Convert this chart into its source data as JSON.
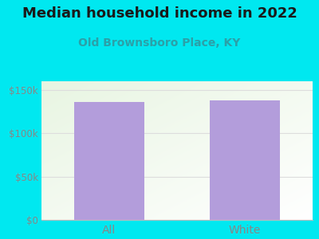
{
  "title": "Median household income in 2022",
  "subtitle": "Old Brownsboro Place, KY",
  "categories": [
    "All",
    "White"
  ],
  "values": [
    136000,
    138000
  ],
  "bar_color": "#b39ddb",
  "background_color": "#00e8f0",
  "plot_bg_color_topleft": "#e8f5e2",
  "plot_bg_color_bottomright": "#ffffff",
  "title_fontsize": 13,
  "subtitle_fontsize": 10,
  "subtitle_color": "#2ba0a8",
  "tick_label_color": "#888888",
  "ylim": [
    0,
    160000
  ],
  "yticks": [
    0,
    50000,
    100000,
    150000
  ],
  "ytick_labels": [
    "$0",
    "$50k",
    "$100k",
    "$150k"
  ],
  "grid_color": "#dddddd"
}
